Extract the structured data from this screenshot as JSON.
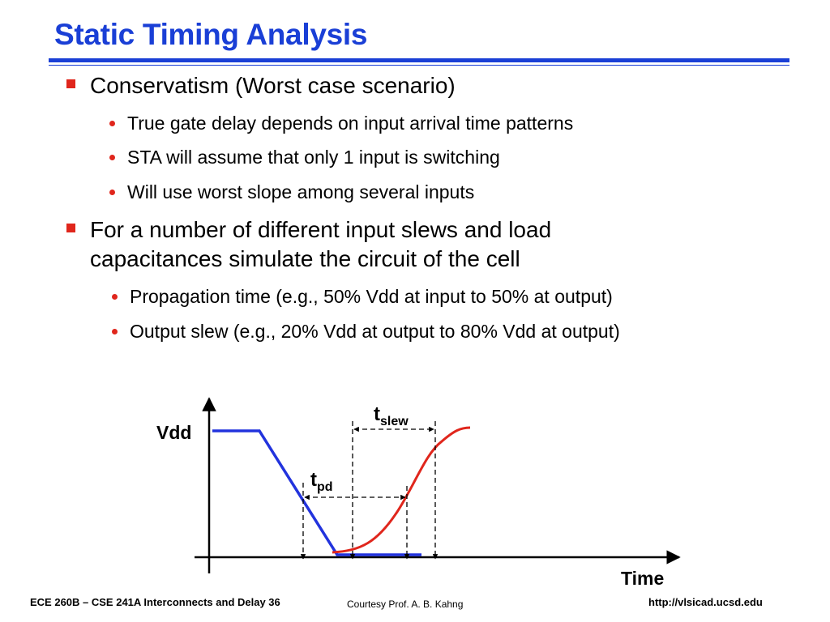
{
  "title": "Static Timing Analysis",
  "bullets": [
    {
      "text": "Conservatism (Worst case scenario)",
      "subs": [
        "True gate delay depends on input arrival time patterns",
        "STA will assume that only 1 input is switching",
        "Will use worst slope among several inputs"
      ]
    },
    {
      "text_lines": [
        "For a number of different input slews and load",
        "capacitances simulate the circuit of the cell"
      ],
      "subs": [
        "Propagation time (e.g., 50% Vdd at input to 50% at output)",
        "Output slew (e.g., 20% Vdd at output to 80% Vdd at output)"
      ]
    }
  ],
  "diagram": {
    "y_label": "Vdd",
    "x_label": "Time",
    "t_slew": {
      "main": "t",
      "sub": "slew"
    },
    "t_pd": {
      "main": "t",
      "sub": "pd"
    },
    "colors": {
      "input": "#2233dd",
      "output": "#e0261c",
      "axis": "#000000"
    }
  },
  "footer": {
    "left": "ECE 260B – CSE 241A Interconnects and Delay 36",
    "middle": "Courtesy Prof. A. B. Kahng",
    "right": "http://vlsicad.ucsd.edu"
  },
  "colors": {
    "title": "#1a3fd6",
    "bullet": "#e0261c"
  }
}
